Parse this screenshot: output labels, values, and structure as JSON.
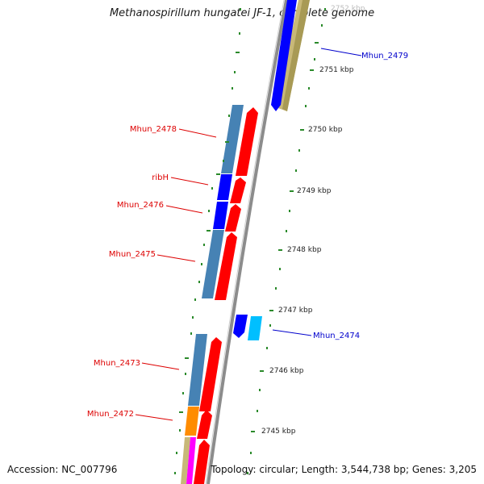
{
  "title": "Methanospirillum hungatei JF-1, complete genome",
  "footer": {
    "accession": "Accession: NC_007796",
    "summary": "Topology: circular; Length: 3,544,738 bp; Genes: 3,205"
  },
  "colors": {
    "backbone": "#8c8c8c",
    "tick": "#2a8a2a",
    "strand_plus_label": "#0000cc",
    "strand_minus_label": "#dd0000",
    "cds_red": "#ff0000",
    "cds_blue": "#0000ff",
    "cds_steel": "#4682b4",
    "cds_cyan": "#00bfff",
    "cds_khaki": "#c8b878",
    "cds_orange": "#ff8c00",
    "cds_magenta": "#ff00ff"
  },
  "scale": {
    "unit": "kbp",
    "ticks": [
      {
        "value": 2752,
        "label": "2752 kbp"
      },
      {
        "value": 2751,
        "label": "2751 kbp"
      },
      {
        "value": 2750,
        "label": "2750 kbp"
      },
      {
        "value": 2749,
        "label": "2749 kbp"
      },
      {
        "value": 2748,
        "label": "2748 kbp"
      },
      {
        "value": 2747,
        "label": "2747 kbp"
      },
      {
        "value": 2746,
        "label": "2746 kbp"
      },
      {
        "value": 2745,
        "label": "2745 kbp"
      }
    ]
  },
  "features": {
    "plus_strand": [
      {
        "label": "Mhun_2479"
      },
      {
        "label": "Mhun_2474"
      }
    ],
    "minus_strand": [
      {
        "label": "Mhun_2478"
      },
      {
        "label": "ribH"
      },
      {
        "label": "Mhun_2476"
      },
      {
        "label": "Mhun_2475"
      },
      {
        "label": "Mhun_2473"
      },
      {
        "label": "Mhun_2472"
      }
    ]
  }
}
